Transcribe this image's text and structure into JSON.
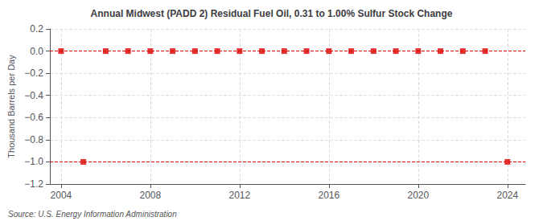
{
  "chart_data": {
    "type": "scatter",
    "title": "Annual Midwest (PADD 2) Residual Fuel Oil, 0.31 to 1.00% Sulfur Stock Change",
    "y_label": "Thousand Barrels per Day",
    "source": "Source: U.S. Energy Information Administration",
    "x": [
      2004,
      2005,
      2006,
      2007,
      2008,
      2009,
      2010,
      2011,
      2012,
      2013,
      2014,
      2015,
      2016,
      2017,
      2018,
      2019,
      2020,
      2021,
      2022,
      2023,
      2024
    ],
    "values": [
      0,
      -1,
      0,
      0,
      0,
      0,
      0,
      0,
      0,
      0,
      0,
      0,
      0,
      0,
      0,
      0,
      0,
      0,
      0,
      0,
      -1
    ],
    "color": "#dd0000",
    "marker": "square",
    "line_style": "dashed",
    "hlines": [
      0,
      -1
    ],
    "xlim": [
      2003.5,
      2024.8
    ],
    "xticks": [
      2004,
      2008,
      2012,
      2016,
      2020,
      2024
    ],
    "ylim": [
      -1.2,
      0.2
    ],
    "yticks": [
      0.2,
      {
        "value": 0,
        "label": "0.0"
      },
      {
        "value": -0.2,
        "label": "−0.2"
      },
      {
        "value": -0.4,
        "label": "−0.4"
      },
      {
        "value": -0.6,
        "label": "−0.6"
      },
      {
        "value": -0.8,
        "label": "−0.8"
      },
      {
        "value": -1,
        "label": "−1.0"
      },
      {
        "value": -1.2,
        "label": "−1.2"
      }
    ],
    "grid": true
  }
}
